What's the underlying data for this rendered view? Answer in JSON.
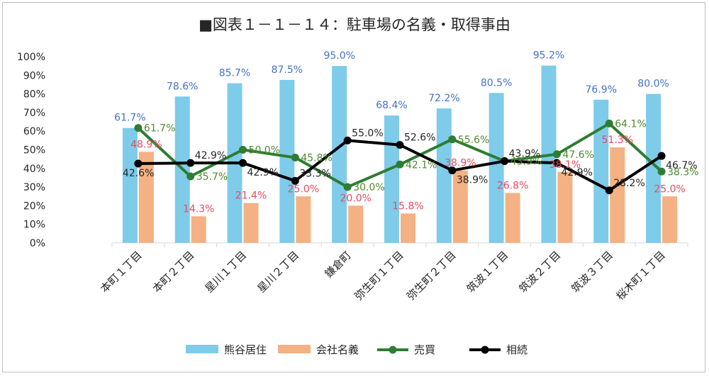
{
  "chart_data": {
    "type": "bar",
    "title": "■図表１－１－１４：駐車場の名義・取得事由",
    "xlabel": "",
    "ylabel": "",
    "ylim": [
      0,
      100
    ],
    "yticks": [
      "0%",
      "10%",
      "20%",
      "30%",
      "40%",
      "50%",
      "60%",
      "70%",
      "80%",
      "90%",
      "100%"
    ],
    "grid": false,
    "legend_position": "bottom",
    "categories": [
      "本町１丁目",
      "本町２丁目",
      "星川１丁目",
      "星川２丁目",
      "鎌倉町",
      "弥生町１丁目",
      "弥生町２丁目",
      "筑波１丁目",
      "筑波２丁目",
      "筑波３丁目",
      "桜木町１丁目"
    ],
    "series": [
      {
        "name": "熊谷居住",
        "kind": "bar",
        "color": "#7ecbea",
        "label_color": "#4472c4",
        "values": [
          61.7,
          78.6,
          85.7,
          87.5,
          95.0,
          68.4,
          72.2,
          80.5,
          95.2,
          76.9,
          80.0
        ],
        "labels": [
          "61.7%",
          "78.6%",
          "85.7%",
          "87.5%",
          "95.0%",
          "68.4%",
          "72.2%",
          "80.5%",
          "95.2%",
          "76.9%",
          "80.0%"
        ]
      },
      {
        "name": "会社名義",
        "kind": "bar",
        "color": "#f4b183",
        "label_color": "#e84a5f",
        "values": [
          48.9,
          14.3,
          21.4,
          25.0,
          20.0,
          15.8,
          38.9,
          26.8,
          38.1,
          51.3,
          25.0
        ],
        "labels": [
          "48.9%",
          "14.3%",
          "21.4%",
          "25.0%",
          "20.0%",
          "15.8%",
          "38.9%",
          "26.8%",
          "38.1%",
          "51.3%",
          "25.0%"
        ]
      },
      {
        "name": "売買",
        "kind": "line",
        "color": "#2e7d32",
        "label_color": "#4e8a2e",
        "values": [
          61.7,
          35.7,
          50.0,
          45.8,
          30.0,
          42.1,
          55.6,
          43.9,
          47.6,
          64.1,
          38.3
        ],
        "labels": [
          "61.7%",
          "35.7%",
          "50.0%",
          "45.8%",
          "30.0%",
          "42.1%",
          "55.6%",
          "43.9%",
          "47.6%",
          "64.1%",
          "38.3%"
        ]
      },
      {
        "name": "相続",
        "kind": "line",
        "color": "#000000",
        "label_color": "#262626",
        "values": [
          42.6,
          42.9,
          42.9,
          33.3,
          55.0,
          52.6,
          38.9,
          43.9,
          42.9,
          28.2,
          46.7
        ],
        "labels": [
          "42.6%",
          "42.9%",
          "42.9%",
          "33.3%",
          "55.0%",
          "52.6%",
          "38.9%",
          "43.9%",
          "42.9%",
          "28.2%",
          "46.7%"
        ]
      }
    ]
  }
}
